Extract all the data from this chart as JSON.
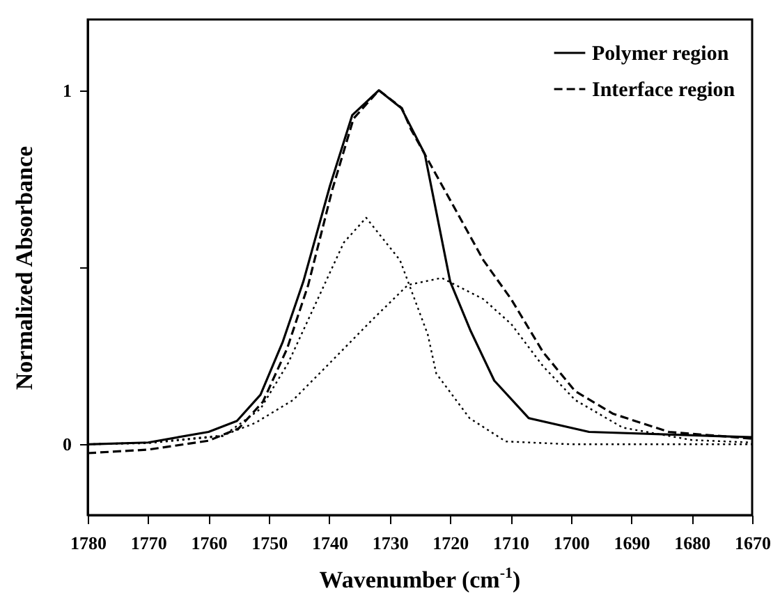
{
  "chart_data": {
    "type": "line",
    "xlabel": "Wavenumber (cm$^{-1}$)",
    "ylabel": "Normalized Absorbance",
    "xlim": [
      1780,
      1670
    ],
    "xticks": [
      1780,
      1770,
      1760,
      1750,
      1740,
      1730,
      1720,
      1710,
      1700,
      1690,
      1680,
      1670
    ],
    "ylim": [
      -0.2,
      1.2
    ],
    "yticks": [
      0,
      {
        "value": 0.5,
        "label": null
      },
      1
    ],
    "legend": "top right",
    "grid": false,
    "series": [
      {
        "name": "Polymer region",
        "color": "#000000",
        "line_style": "solid",
        "x": [
          1780,
          1770,
          1760,
          1755.3,
          1751.4,
          1747.7,
          1744.3,
          1739.9,
          1736.2,
          1731.8,
          1728.1,
          1724.2,
          1720,
          1716.6,
          1712.7,
          1707,
          1697,
          1670
        ],
        "values": [
          0,
          0.005,
          0.035,
          0.066,
          0.14,
          0.29,
          0.46,
          0.73,
          0.93,
          1.0,
          0.95,
          0.82,
          0.46,
          0.32,
          0.18,
          0.074,
          0.035,
          0.02
        ]
      },
      {
        "name": "Interface region",
        "color": "#000000",
        "line_style": "dashed",
        "x": [
          1780,
          1770,
          1760,
          1755,
          1751,
          1747,
          1743.5,
          1739.5,
          1736,
          1731.8,
          1728,
          1726.5,
          1720,
          1714.5,
          1709.9,
          1704.6,
          1699.3,
          1693,
          1683.8,
          1670
        ],
        "values": [
          -0.025,
          -0.015,
          0.01,
          0.045,
          0.12,
          0.27,
          0.45,
          0.72,
          0.92,
          1.0,
          0.95,
          0.89,
          0.69,
          0.52,
          0.41,
          0.26,
          0.15,
          0.086,
          0.035,
          0.016
        ]
      },
      {
        "color": "#000000",
        "line_style": "dotted",
        "x": [
          1780,
          1770,
          1757.6,
          1751.4,
          1746.8,
          1742.2,
          1737.6,
          1733.9,
          1728.3,
          1723.7,
          1722.3,
          1716.8,
          1710.8,
          1700,
          1670
        ],
        "values": [
          0,
          0.003,
          0.023,
          0.1,
          0.23,
          0.4,
          0.57,
          0.64,
          0.52,
          0.31,
          0.2,
          0.074,
          0.008,
          0,
          0
        ]
      },
      {
        "color": "#000000",
        "line_style": "dotted",
        "x": [
          1780,
          1770,
          1757.6,
          1752.3,
          1746,
          1739.9,
          1733,
          1727,
          1721.4,
          1714.5,
          1709.9,
          1704.6,
          1699.3,
          1691.4,
          1680,
          1670
        ],
        "values": [
          0,
          0.005,
          0.025,
          0.06,
          0.125,
          0.23,
          0.35,
          0.45,
          0.47,
          0.41,
          0.34,
          0.22,
          0.125,
          0.047,
          0.012,
          0.005
        ]
      }
    ]
  }
}
